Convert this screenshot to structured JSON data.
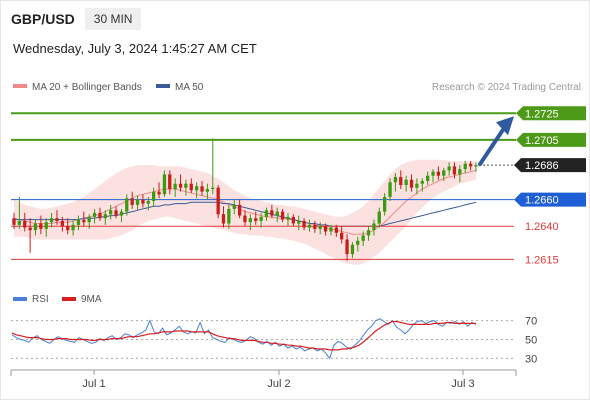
{
  "header": {
    "pair": "GBP/USD",
    "timeframe": "30 MIN",
    "timestamp": "Wednesday, July 3, 2024 1:45:27 AM CET"
  },
  "legend": {
    "ma20_label": "MA 20 + Bollinger Bands",
    "ma50_label": "MA 50",
    "credit": "Research © 2024 Trading Central",
    "colors": {
      "ma20": "#f08a8a",
      "ma50": "#3a5a9a"
    }
  },
  "chart_data": [
    {
      "type": "candlestick",
      "ylim": [
        1.2598,
        1.2741
      ],
      "x_ticks": [
        "Jul 1",
        "Jul 2",
        "Jul 3"
      ],
      "last_price": {
        "value": 1.2686,
        "label": "1.2686",
        "color": "#222222"
      },
      "levels": [
        {
          "value": 1.2725,
          "label": "1.2725",
          "kind": "resistance",
          "color": "#4c9a18"
        },
        {
          "value": 1.2705,
          "label": "1.2705",
          "kind": "resistance",
          "color": "#4c9a18"
        },
        {
          "value": 1.266,
          "label": "1.2660",
          "kind": "pivot",
          "color": "#1f5fd6"
        },
        {
          "value": 1.264,
          "label": "1.2640",
          "kind": "support",
          "color": "#e03a3a"
        },
        {
          "value": 1.2615,
          "label": "1.2615",
          "kind": "support",
          "color": "#e03a3a"
        }
      ],
      "candles": [
        [
          1.2646,
          1.265,
          1.2638,
          1.2641
        ],
        [
          1.2641,
          1.2662,
          1.2638,
          1.2644
        ],
        [
          1.2644,
          1.265,
          1.2636,
          1.2639
        ],
        [
          1.2639,
          1.2646,
          1.262,
          1.2637
        ],
        [
          1.2637,
          1.2645,
          1.2633,
          1.2642
        ],
        [
          1.2642,
          1.2648,
          1.2634,
          1.2638
        ],
        [
          1.2638,
          1.2646,
          1.2632,
          1.2643
        ],
        [
          1.2643,
          1.265,
          1.2639,
          1.2646
        ],
        [
          1.2646,
          1.2652,
          1.2641,
          1.2644
        ],
        [
          1.2644,
          1.2647,
          1.2636,
          1.264
        ],
        [
          1.264,
          1.2646,
          1.2634,
          1.2637
        ],
        [
          1.2637,
          1.2644,
          1.2633,
          1.2641
        ],
        [
          1.2641,
          1.2648,
          1.2637,
          1.2645
        ],
        [
          1.2645,
          1.2651,
          1.264,
          1.2643
        ],
        [
          1.2643,
          1.2649,
          1.2638,
          1.2647
        ],
        [
          1.2647,
          1.2653,
          1.2642,
          1.265
        ],
        [
          1.265,
          1.2654,
          1.2644,
          1.2646
        ],
        [
          1.2646,
          1.2652,
          1.2641,
          1.2649
        ],
        [
          1.2649,
          1.2656,
          1.2645,
          1.2652
        ],
        [
          1.2652,
          1.2655,
          1.2646,
          1.2648
        ],
        [
          1.2648,
          1.2653,
          1.2643,
          1.2651
        ],
        [
          1.2651,
          1.2664,
          1.2648,
          1.2661
        ],
        [
          1.2661,
          1.2666,
          1.2653,
          1.2656
        ],
        [
          1.2656,
          1.2663,
          1.2652,
          1.266
        ],
        [
          1.266,
          1.2664,
          1.2654,
          1.2657
        ],
        [
          1.2657,
          1.2662,
          1.2652,
          1.2659
        ],
        [
          1.2659,
          1.2669,
          1.2655,
          1.2666
        ],
        [
          1.2666,
          1.2673,
          1.2661,
          1.2664
        ],
        [
          1.2664,
          1.2682,
          1.2662,
          1.2679
        ],
        [
          1.2679,
          1.2682,
          1.2664,
          1.2668
        ],
        [
          1.2668,
          1.2676,
          1.2662,
          1.2672
        ],
        [
          1.2672,
          1.2679,
          1.2666,
          1.2669
        ],
        [
          1.2669,
          1.2675,
          1.2663,
          1.2672
        ],
        [
          1.2672,
          1.2676,
          1.2665,
          1.2667
        ],
        [
          1.2667,
          1.2673,
          1.2661,
          1.267
        ],
        [
          1.267,
          1.2674,
          1.2663,
          1.2666
        ],
        [
          1.2666,
          1.2672,
          1.266,
          1.2668
        ],
        [
          1.2668,
          1.2706,
          1.2664,
          1.2669
        ],
        [
          1.2669,
          1.2671,
          1.2646,
          1.2649
        ],
        [
          1.2649,
          1.2655,
          1.2639,
          1.2642
        ],
        [
          1.2642,
          1.2656,
          1.2638,
          1.2653
        ],
        [
          1.2653,
          1.266,
          1.2649,
          1.2656
        ],
        [
          1.2656,
          1.266,
          1.2646,
          1.2648
        ],
        [
          1.2648,
          1.2652,
          1.264,
          1.2643
        ],
        [
          1.2643,
          1.2649,
          1.2637,
          1.2646
        ],
        [
          1.2646,
          1.2651,
          1.2641,
          1.2644
        ],
        [
          1.2644,
          1.265,
          1.2639,
          1.2647
        ],
        [
          1.2647,
          1.2654,
          1.2644,
          1.2652
        ],
        [
          1.2652,
          1.2656,
          1.2646,
          1.2648
        ],
        [
          1.2648,
          1.2654,
          1.2643,
          1.2651
        ],
        [
          1.2651,
          1.2653,
          1.2643,
          1.2645
        ],
        [
          1.2645,
          1.265,
          1.264,
          1.2647
        ],
        [
          1.2647,
          1.2649,
          1.264,
          1.2642
        ],
        [
          1.2642,
          1.2648,
          1.2637,
          1.2644
        ],
        [
          1.2644,
          1.2646,
          1.2637,
          1.2639
        ],
        [
          1.2639,
          1.2645,
          1.2636,
          1.2641
        ],
        [
          1.2641,
          1.2644,
          1.2635,
          1.2638
        ],
        [
          1.2638,
          1.2643,
          1.2634,
          1.264
        ],
        [
          1.264,
          1.2642,
          1.2633,
          1.2636
        ],
        [
          1.2636,
          1.2641,
          1.2633,
          1.2639
        ],
        [
          1.2639,
          1.2641,
          1.2632,
          1.2635
        ],
        [
          1.2635,
          1.264,
          1.2627,
          1.263
        ],
        [
          1.263,
          1.2634,
          1.2614,
          1.2619
        ],
        [
          1.2619,
          1.2628,
          1.2616,
          1.2626
        ],
        [
          1.2626,
          1.2632,
          1.2621,
          1.2629
        ],
        [
          1.2629,
          1.2636,
          1.2625,
          1.2633
        ],
        [
          1.2633,
          1.264,
          1.2629,
          1.2637
        ],
        [
          1.2637,
          1.2645,
          1.2633,
          1.2642
        ],
        [
          1.2642,
          1.2654,
          1.2639,
          1.2651
        ],
        [
          1.2651,
          1.2665,
          1.2648,
          1.2662
        ],
        [
          1.2662,
          1.2676,
          1.2659,
          1.2673
        ],
        [
          1.2673,
          1.268,
          1.2666,
          1.2677
        ],
        [
          1.2677,
          1.2682,
          1.2668,
          1.2671
        ],
        [
          1.2671,
          1.2678,
          1.2666,
          1.2675
        ],
        [
          1.2675,
          1.2679,
          1.2666,
          1.2669
        ],
        [
          1.2669,
          1.2676,
          1.2664,
          1.2672
        ],
        [
          1.2672,
          1.2676,
          1.2666,
          1.2674
        ],
        [
          1.2674,
          1.2681,
          1.2671,
          1.2678
        ],
        [
          1.2678,
          1.2683,
          1.2673,
          1.2681
        ],
        [
          1.2681,
          1.2685,
          1.2675,
          1.2678
        ],
        [
          1.2678,
          1.2684,
          1.2674,
          1.2682
        ],
        [
          1.2682,
          1.2688,
          1.2678,
          1.2685
        ],
        [
          1.2685,
          1.2688,
          1.2676,
          1.2679
        ],
        [
          1.2679,
          1.2686,
          1.2673,
          1.2683
        ],
        [
          1.2683,
          1.2689,
          1.268,
          1.2687
        ],
        [
          1.2687,
          1.2689,
          1.2682,
          1.2685
        ],
        [
          1.2685,
          1.2688,
          1.2681,
          1.2686
        ]
      ],
      "ma20": [
        1.2646,
        1.2645,
        1.2644,
        1.2643,
        1.2642,
        1.2642,
        1.2642,
        1.2642,
        1.2643,
        1.2643,
        1.2643,
        1.2644,
        1.2645,
        1.2646,
        1.2647,
        1.2648,
        1.2649,
        1.2651,
        1.2653,
        1.2655,
        1.2657,
        1.2659,
        1.2661,
        1.2663,
        1.2664,
        1.2665,
        1.2666,
        1.2667,
        1.2668,
        1.2668,
        1.2668,
        1.2667,
        1.2666,
        1.2665,
        1.2664,
        1.2663,
        1.2662,
        1.2661,
        1.266,
        1.2658,
        1.2656,
        1.2655,
        1.2653,
        1.2651,
        1.265,
        1.2649,
        1.2648,
        1.2647,
        1.2647,
        1.2646,
        1.2646,
        1.2645,
        1.2645,
        1.2644,
        1.2643,
        1.2642,
        1.2641,
        1.264,
        1.2639,
        1.2638,
        1.2637,
        1.2636,
        1.2635,
        1.2634,
        1.2634,
        1.2634,
        1.2635,
        1.2637,
        1.264,
        1.2643,
        1.2647,
        1.2651,
        1.2655,
        1.2659,
        1.2662,
        1.2665,
        1.2668,
        1.267,
        1.2672,
        1.2674,
        1.2676,
        1.2677,
        1.2678,
        1.2679,
        1.268,
        1.2681,
        1.2682
      ],
      "bb_upper": [
        1.266,
        1.2658,
        1.2656,
        1.2655,
        1.2654,
        1.2653,
        1.2653,
        1.2654,
        1.2655,
        1.2656,
        1.2657,
        1.2658,
        1.266,
        1.2662,
        1.2665,
        1.2668,
        1.2671,
        1.2674,
        1.2677,
        1.268,
        1.2682,
        1.2684,
        1.2685,
        1.2686,
        1.2686,
        1.2686,
        1.2686,
        1.2685,
        1.2685,
        1.2685,
        1.2685,
        1.2685,
        1.2684,
        1.2683,
        1.2682,
        1.2681,
        1.268,
        1.2678,
        1.2676,
        1.2673,
        1.267,
        1.2667,
        1.2665,
        1.2663,
        1.2661,
        1.266,
        1.2659,
        1.2658,
        1.2657,
        1.2656,
        1.2656,
        1.2655,
        1.2655,
        1.2654,
        1.2653,
        1.2652,
        1.2651,
        1.265,
        1.2649,
        1.2648,
        1.2647,
        1.2647,
        1.2648,
        1.265,
        1.2652,
        1.2655,
        1.2659,
        1.2664,
        1.2669,
        1.2674,
        1.2679,
        1.2683,
        1.2686,
        1.2688,
        1.2689,
        1.269,
        1.269,
        1.269,
        1.269,
        1.269,
        1.269,
        1.2689,
        1.2689,
        1.2689,
        1.2689,
        1.2689,
        1.2689
      ],
      "bb_lower": [
        1.2632,
        1.2632,
        1.2632,
        1.2631,
        1.263,
        1.263,
        1.263,
        1.263,
        1.263,
        1.263,
        1.263,
        1.263,
        1.263,
        1.263,
        1.263,
        1.263,
        1.263,
        1.263,
        1.2631,
        1.2632,
        1.2633,
        1.2635,
        1.2637,
        1.264,
        1.2642,
        1.2644,
        1.2645,
        1.2646,
        1.2647,
        1.2647,
        1.2646,
        1.2645,
        1.2644,
        1.2643,
        1.2642,
        1.2641,
        1.264,
        1.2639,
        1.2638,
        1.2637,
        1.2636,
        1.2635,
        1.2634,
        1.2634,
        1.2633,
        1.2633,
        1.2633,
        1.2632,
        1.2632,
        1.2631,
        1.2631,
        1.263,
        1.2629,
        1.2628,
        1.2627,
        1.2625,
        1.2623,
        1.2621,
        1.2619,
        1.2617,
        1.2615,
        1.2613,
        1.2612,
        1.2611,
        1.2611,
        1.2612,
        1.2614,
        1.2617,
        1.262,
        1.2624,
        1.2628,
        1.2632,
        1.2636,
        1.264,
        1.2645,
        1.265,
        1.2654,
        1.2658,
        1.2661,
        1.2664,
        1.2666,
        1.2668,
        1.267,
        1.2672,
        1.2673,
        1.2674,
        1.2675
      ],
      "ma50": [
        1.2645,
        1.2645,
        1.2645,
        1.2645,
        1.2645,
        1.2645,
        1.2645,
        1.2645,
        1.2645,
        1.2645,
        1.2645,
        1.2645,
        1.2645,
        1.2646,
        1.2646,
        1.2646,
        1.2647,
        1.2647,
        1.2648,
        1.2648,
        1.2649,
        1.265,
        1.2651,
        1.2652,
        1.2653,
        1.2654,
        1.2655,
        1.2655,
        1.2656,
        1.2656,
        1.2657,
        1.2657,
        1.2657,
        1.2658,
        1.2658,
        1.2658,
        1.2658,
        1.2658,
        1.2658,
        1.2657,
        1.2657,
        1.2656,
        1.2655,
        1.2654,
        1.2653,
        1.2652,
        1.2651,
        1.265,
        1.2649,
        1.2648,
        1.2647,
        1.2646,
        1.2645,
        1.2644,
        1.2643,
        1.2642,
        1.2642,
        1.2641,
        1.2641,
        1.264,
        1.264,
        1.264,
        1.264,
        1.264,
        1.264,
        1.264,
        1.264,
        1.264,
        1.264,
        1.2641,
        1.2642,
        1.2643,
        1.2644,
        1.2645,
        1.2646,
        1.2647,
        1.2648,
        1.2649,
        1.265,
        1.2651,
        1.2652,
        1.2653,
        1.2654,
        1.2655,
        1.2656,
        1.2657,
        1.2658
      ]
    },
    {
      "type": "line",
      "legend": [
        {
          "name": "RSI",
          "color": "#4a7fd6"
        },
        {
          "name": "9MA",
          "color": "#d71f1f"
        }
      ],
      "ylim": [
        22,
        78
      ],
      "y_ticks": [
        {
          "value": 70,
          "label": "70"
        },
        {
          "value": 50,
          "label": "50"
        },
        {
          "value": 30,
          "label": "30"
        }
      ],
      "rsi": [
        55,
        52,
        50,
        49,
        47,
        52,
        54,
        50,
        48,
        46,
        50,
        53,
        51,
        49,
        48,
        47,
        52,
        50,
        48,
        46,
        47,
        51,
        49,
        52,
        54,
        50,
        52,
        56,
        55,
        52,
        55,
        57,
        60,
        70,
        58,
        56,
        62,
        55,
        57,
        60,
        64,
        58,
        56,
        58,
        57,
        68,
        56,
        60,
        52,
        50,
        48,
        47,
        52,
        50,
        48,
        47,
        49,
        53,
        51,
        47,
        45,
        48,
        44,
        47,
        43,
        45,
        41,
        43,
        40,
        42,
        38,
        40,
        41,
        38,
        40,
        36,
        30,
        44,
        48,
        46,
        42,
        40,
        44,
        48,
        54,
        60,
        64,
        70,
        72,
        69,
        66,
        70,
        63,
        60,
        56,
        60,
        66,
        69,
        70,
        67,
        69,
        70,
        66,
        64,
        68,
        67,
        69,
        66,
        69,
        64,
        68,
        66
      ],
      "ma9": [
        57,
        55,
        54,
        53,
        52,
        52,
        52,
        51,
        50,
        50,
        50,
        51,
        51,
        51,
        50,
        50,
        50,
        50,
        50,
        49,
        49,
        50,
        50,
        50,
        51,
        51,
        51,
        52,
        53,
        53,
        53,
        54,
        55,
        56,
        56,
        57,
        58,
        58,
        58,
        59,
        59,
        59,
        59,
        58,
        58,
        58,
        58,
        58,
        56,
        54,
        53,
        52,
        51,
        51,
        50,
        49,
        49,
        49,
        49,
        48,
        47,
        47,
        46,
        46,
        45,
        45,
        44,
        44,
        43,
        43,
        42,
        41,
        41,
        40,
        40,
        40,
        39,
        39,
        39,
        40,
        40,
        41,
        42,
        44,
        47,
        51,
        55,
        59,
        62,
        65,
        67,
        69,
        69,
        68,
        67,
        66,
        66,
        66,
        66,
        66,
        66,
        67,
        67,
        67,
        68,
        68,
        67,
        67,
        67,
        67,
        67,
        67
      ]
    }
  ]
}
